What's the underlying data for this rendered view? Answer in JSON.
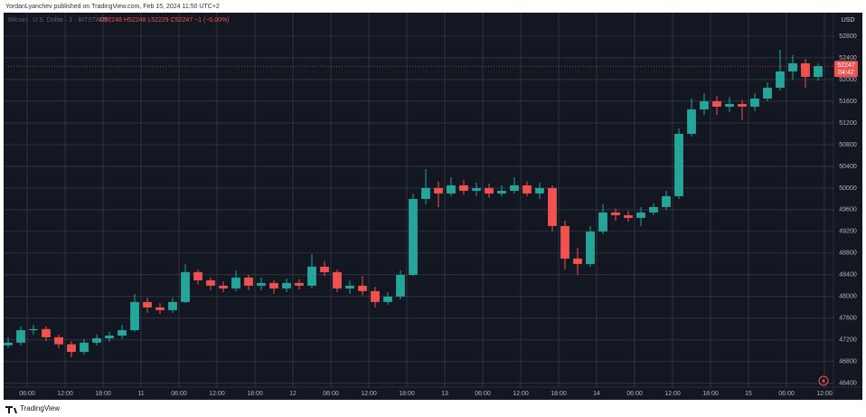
{
  "header": {
    "text": "YordanLyanchev published on TradingView.com, Feb 15, 2024 11:50 UTC+2"
  },
  "footer": {
    "brand": "TradingView"
  },
  "chart_data": {
    "type": "candlestick",
    "symbol": "Bitcoin · U.S. Dollar · 1 · BITSTAMP",
    "ohlc_text": "O52248 H52248 L52229 C52247 −1 (−0.00%)",
    "currency": "USD",
    "last_price": 52247,
    "countdown": "04:42",
    "up_color": "#26a69a",
    "down_color": "#ef5350",
    "grid": true,
    "xlim": [
      2.57,
      133.43
    ],
    "xticks": [
      {
        "value": 6,
        "label": "06:00"
      },
      {
        "value": 12,
        "label": "12:00"
      },
      {
        "value": 18,
        "label": "18:00"
      },
      {
        "value": 24,
        "label": "11"
      },
      {
        "value": 30,
        "label": "06:00"
      },
      {
        "value": 36,
        "label": "12:00"
      },
      {
        "value": 42,
        "label": "18:00"
      },
      {
        "value": 48,
        "label": "12"
      },
      {
        "value": 54,
        "label": "06:00"
      },
      {
        "value": 60,
        "label": "12:00"
      },
      {
        "value": 66,
        "label": "18:00"
      },
      {
        "value": 72,
        "label": "13"
      },
      {
        "value": 78,
        "label": "06:00"
      },
      {
        "value": 84,
        "label": "12:00"
      },
      {
        "value": 90,
        "label": "18:00"
      },
      {
        "value": 96,
        "label": "14"
      },
      {
        "value": 102,
        "label": "06:00"
      },
      {
        "value": 108,
        "label": "12:00"
      },
      {
        "value": 114,
        "label": "18:00"
      },
      {
        "value": 120,
        "label": "15"
      },
      {
        "value": 126,
        "label": "06:00"
      },
      {
        "value": 132,
        "label": "12:00"
      }
    ],
    "ylim": [
      46330,
      53200
    ],
    "yticks": [
      46400,
      46800,
      47200,
      47600,
      48000,
      48400,
      48800,
      49200,
      49600,
      50000,
      50400,
      50800,
      51200,
      51600,
      52000,
      52400,
      52800
    ],
    "x": [
      3,
      5,
      7,
      9,
      11,
      13,
      15,
      17,
      19,
      21,
      23,
      25,
      27,
      29,
      31,
      33,
      35,
      37,
      39,
      41,
      43,
      45,
      47,
      49,
      51,
      53,
      55,
      57,
      59,
      61,
      63,
      65,
      67,
      69,
      71,
      73,
      75,
      77,
      79,
      81,
      83,
      85,
      87,
      89,
      91,
      93,
      95,
      97,
      99,
      101,
      103,
      105,
      107,
      109,
      111,
      113,
      115,
      117,
      119,
      121,
      123,
      125,
      127,
      129,
      131
    ],
    "open": [
      47100,
      47150,
      47380,
      47400,
      47250,
      47120,
      46980,
      47150,
      47230,
      47280,
      47380,
      47900,
      47800,
      47750,
      47900,
      48450,
      48300,
      48200,
      48150,
      48350,
      48200,
      48250,
      48150,
      48250,
      48200,
      48550,
      48450,
      48150,
      48200,
      48100,
      47900,
      48000,
      48400,
      49800,
      50000,
      49900,
      50050,
      49950,
      50000,
      49900,
      49950,
      50050,
      49900,
      50000,
      49300,
      48700,
      48600,
      49200,
      49550,
      49500,
      49450,
      49550,
      49650,
      49850,
      51000,
      51450,
      51600,
      51500,
      51550,
      51500,
      51650,
      51850,
      52150,
      52300,
      52050
    ],
    "high": [
      47250,
      47450,
      47480,
      47450,
      47300,
      47180,
      47220,
      47300,
      47350,
      47480,
      48050,
      47980,
      47880,
      47980,
      48600,
      48500,
      48350,
      48280,
      48480,
      48400,
      48350,
      48300,
      48330,
      48320,
      48780,
      48650,
      48500,
      48300,
      48380,
      48180,
      48080,
      48480,
      49900,
      50350,
      50120,
      50200,
      50150,
      50100,
      50080,
      50050,
      50200,
      50120,
      50100,
      50050,
      49400,
      48900,
      49300,
      49700,
      49620,
      49580,
      49650,
      49720,
      49950,
      51100,
      51650,
      51750,
      51700,
      51680,
      51620,
      51750,
      51950,
      52550,
      52450,
      52380,
      52300
    ],
    "low": [
      47050,
      47100,
      47300,
      47180,
      47050,
      46880,
      46930,
      47100,
      47170,
      47220,
      47350,
      47700,
      47680,
      47700,
      47880,
      48220,
      48120,
      48080,
      48100,
      48120,
      48120,
      48050,
      48080,
      48130,
      48150,
      48380,
      48080,
      48050,
      48020,
      47800,
      47850,
      47950,
      48380,
      49700,
      49650,
      49850,
      49880,
      49850,
      49820,
      49850,
      49900,
      49850,
      49800,
      49200,
      48500,
      48400,
      48550,
      49150,
      49400,
      49380,
      49300,
      49500,
      49600,
      49800,
      50950,
      51350,
      51350,
      51400,
      51250,
      51420,
      51600,
      51800,
      52000,
      51850,
      51980
    ],
    "close": [
      47150,
      47380,
      47400,
      47250,
      47120,
      46980,
      47150,
      47230,
      47280,
      47380,
      47900,
      47800,
      47750,
      47900,
      48450,
      48300,
      48200,
      48150,
      48350,
      48200,
      48250,
      48150,
      48250,
      48200,
      48550,
      48450,
      48150,
      48200,
      48100,
      47900,
      48000,
      48400,
      49800,
      50000,
      49900,
      50050,
      49950,
      50000,
      49900,
      49950,
      50050,
      49900,
      50000,
      49300,
      48700,
      48600,
      49200,
      49550,
      49500,
      49450,
      49550,
      49650,
      49850,
      51000,
      51450,
      51600,
      51500,
      51550,
      51500,
      51650,
      51850,
      52150,
      52300,
      52050,
      52247
    ]
  }
}
